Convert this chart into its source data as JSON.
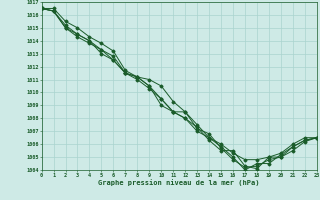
{
  "xlabel": "Graphe pression niveau de la mer (hPa)",
  "xlim": [
    0,
    23
  ],
  "ylim": [
    1004,
    1017
  ],
  "yticks": [
    1004,
    1005,
    1006,
    1007,
    1008,
    1009,
    1010,
    1011,
    1012,
    1013,
    1014,
    1015,
    1016,
    1017
  ],
  "xticks": [
    0,
    1,
    2,
    3,
    4,
    5,
    6,
    7,
    8,
    9,
    10,
    11,
    12,
    13,
    14,
    15,
    16,
    17,
    18,
    19,
    20,
    21,
    22,
    23
  ],
  "background_color": "#ceeae6",
  "grid_color": "#aad4ce",
  "line_color": "#1a5c2a",
  "line1_x": [
    0,
    1,
    2,
    3,
    4,
    5,
    6,
    7,
    8,
    9,
    10,
    11,
    12,
    13,
    14,
    15,
    16,
    17,
    18,
    19,
    20,
    21,
    22,
    23
  ],
  "line1_y": [
    1016.5,
    1016.5,
    1015.5,
    1015.0,
    1014.3,
    1013.8,
    1013.2,
    1011.7,
    1011.2,
    1011.0,
    1010.5,
    1009.3,
    1008.5,
    1007.2,
    1006.8,
    1005.7,
    1004.8,
    1004.2,
    1004.3,
    1004.8,
    1005.0,
    1005.8,
    1006.3,
    1006.5
  ],
  "line2_x": [
    0,
    1,
    2,
    3,
    4,
    5,
    6,
    7,
    8,
    9,
    10,
    11,
    12,
    13,
    14,
    15,
    16,
    17,
    18,
    19,
    20,
    21,
    22,
    23
  ],
  "line2_y": [
    1016.5,
    1016.3,
    1015.2,
    1014.5,
    1014.0,
    1013.3,
    1012.8,
    1011.5,
    1011.0,
    1010.3,
    1009.5,
    1008.5,
    1008.0,
    1007.0,
    1006.5,
    1006.0,
    1005.3,
    1004.8,
    1004.8,
    1005.0,
    1005.3,
    1006.0,
    1006.5,
    1006.5
  ],
  "line3_x": [
    0,
    1,
    2,
    3,
    4,
    5,
    6,
    7,
    8,
    9,
    10,
    11,
    12,
    13,
    14,
    15,
    16,
    17,
    18,
    19,
    20,
    21,
    22,
    23
  ],
  "line3_y": [
    1016.5,
    1016.3,
    1015.0,
    1014.3,
    1013.8,
    1013.3,
    1012.5,
    1011.5,
    1011.2,
    1010.5,
    1009.0,
    1008.5,
    1008.0,
    1007.3,
    1006.3,
    1005.5,
    1005.5,
    1004.3,
    1004.1,
    1005.0,
    1005.0,
    1005.5,
    1006.2,
    1006.5
  ],
  "line4_x": [
    0,
    1,
    2,
    3,
    4,
    5,
    6,
    7,
    8,
    9,
    10,
    11,
    12,
    13,
    14,
    15,
    16,
    17,
    18,
    19,
    20,
    21,
    22,
    23
  ],
  "line4_y": [
    1016.5,
    1016.3,
    1015.0,
    1014.5,
    1014.0,
    1013.0,
    1012.5,
    1011.5,
    1011.2,
    1010.5,
    1009.5,
    1008.5,
    1008.5,
    1007.5,
    1006.5,
    1005.8,
    1005.0,
    1004.0,
    1004.5,
    1004.5,
    1005.2,
    1005.8,
    1006.3,
    1006.5
  ]
}
